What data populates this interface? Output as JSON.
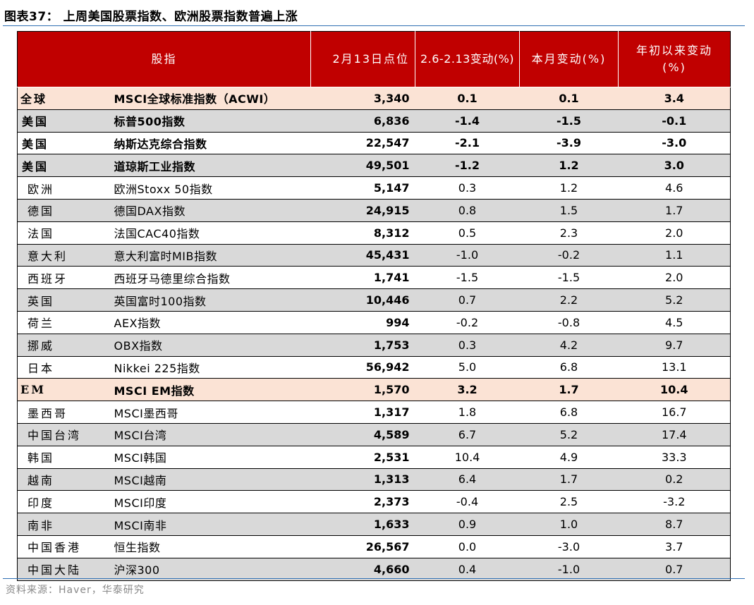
{
  "title": "图表37：  上周美国股票指数、欧洲股票指数普遍上涨",
  "source": "资料来源：Haver，华泰研究",
  "headers": {
    "index": "股指",
    "level": "2月13日点位",
    "week": "2.6-2.13变动(%)",
    "month": "本月变动(%)",
    "ytd_line1": "年初以来变动",
    "ytd_line2": "(%)"
  },
  "rows": [
    {
      "region": "全球",
      "name": "MSCI全球标准指数（ACWI）",
      "level": "3,340",
      "week": "0.1",
      "month": "0.1",
      "ytd": "3.4"
    },
    {
      "region": "美国",
      "name": "标普500指数",
      "level": "6,836",
      "week": "-1.4",
      "month": "-1.5",
      "ytd": "-0.1"
    },
    {
      "region": "美国",
      "name": "纳斯达克综合指数",
      "level": "22,547",
      "week": "-2.1",
      "month": "-3.9",
      "ytd": "-3.0"
    },
    {
      "region": "美国",
      "name": "道琼斯工业指数",
      "level": "49,501",
      "week": "-1.2",
      "month": "1.2",
      "ytd": "3.0"
    },
    {
      "region": "欧洲",
      "name": "欧洲Stoxx 50指数",
      "level": "5,147",
      "week": "0.3",
      "month": "1.2",
      "ytd": "4.6"
    },
    {
      "region": "德国",
      "name": "德国DAX指数",
      "level": "24,915",
      "week": "0.8",
      "month": "1.5",
      "ytd": "1.7"
    },
    {
      "region": "法国",
      "name": "法国CAC40指数",
      "level": "8,312",
      "week": "0.5",
      "month": "2.3",
      "ytd": "2.0"
    },
    {
      "region": "意大利",
      "name": "意大利富时MIB指数",
      "level": "45,431",
      "week": "-1.0",
      "month": "-0.2",
      "ytd": "1.1"
    },
    {
      "region": "西班牙",
      "name": "西班牙马德里综合指数",
      "level": "1,741",
      "week": "-1.5",
      "month": "-1.5",
      "ytd": "2.0"
    },
    {
      "region": "英国",
      "name": "英国富时100指数",
      "level": "10,446",
      "week": "0.7",
      "month": "2.2",
      "ytd": "5.2"
    },
    {
      "region": "荷兰",
      "name": "AEX指数",
      "level": "994",
      "week": "-0.2",
      "month": "-0.8",
      "ytd": "4.5"
    },
    {
      "region": "挪威",
      "name": "OBX指数",
      "level": "1,753",
      "week": "0.3",
      "month": "4.2",
      "ytd": "9.7"
    },
    {
      "region": "日本",
      "name": "Nikkei 225指数",
      "level": "56,942",
      "week": "5.0",
      "month": "6.8",
      "ytd": "13.1"
    },
    {
      "region": "EM",
      "name": "MSCI EM指数",
      "level": "1,570",
      "week": "3.2",
      "month": "1.7",
      "ytd": "10.4"
    },
    {
      "region": "墨西哥",
      "name": "MSCI墨西哥",
      "level": "1,317",
      "week": "1.8",
      "month": "6.8",
      "ytd": "16.7"
    },
    {
      "region": "中国台湾",
      "name": "MSCI台湾",
      "level": "4,589",
      "week": "6.7",
      "month": "5.2",
      "ytd": "17.4"
    },
    {
      "region": "韩国",
      "name": "MSCI韩国",
      "level": "2,531",
      "week": "10.4",
      "month": "4.9",
      "ytd": "33.3"
    },
    {
      "region": "越南",
      "name": "MSCI越南",
      "level": "1,313",
      "week": "6.4",
      "month": "1.7",
      "ytd": "0.2"
    },
    {
      "region": "印度",
      "name": "MSCI印度",
      "level": "2,373",
      "week": "-0.4",
      "month": "2.5",
      "ytd": "-3.2"
    },
    {
      "region": "南非",
      "name": "MSCI南非",
      "level": "1,633",
      "week": "0.9",
      "month": "1.0",
      "ytd": "8.7"
    },
    {
      "region": "中国香港",
      "name": "恒生指数",
      "level": "26,567",
      "week": "0.0",
      "month": "-3.0",
      "ytd": "3.7"
    },
    {
      "region": "中国大陆",
      "name": "沪深300",
      "level": "4,660",
      "week": "0.4",
      "month": "-1.0",
      "ytd": "0.7"
    }
  ]
}
